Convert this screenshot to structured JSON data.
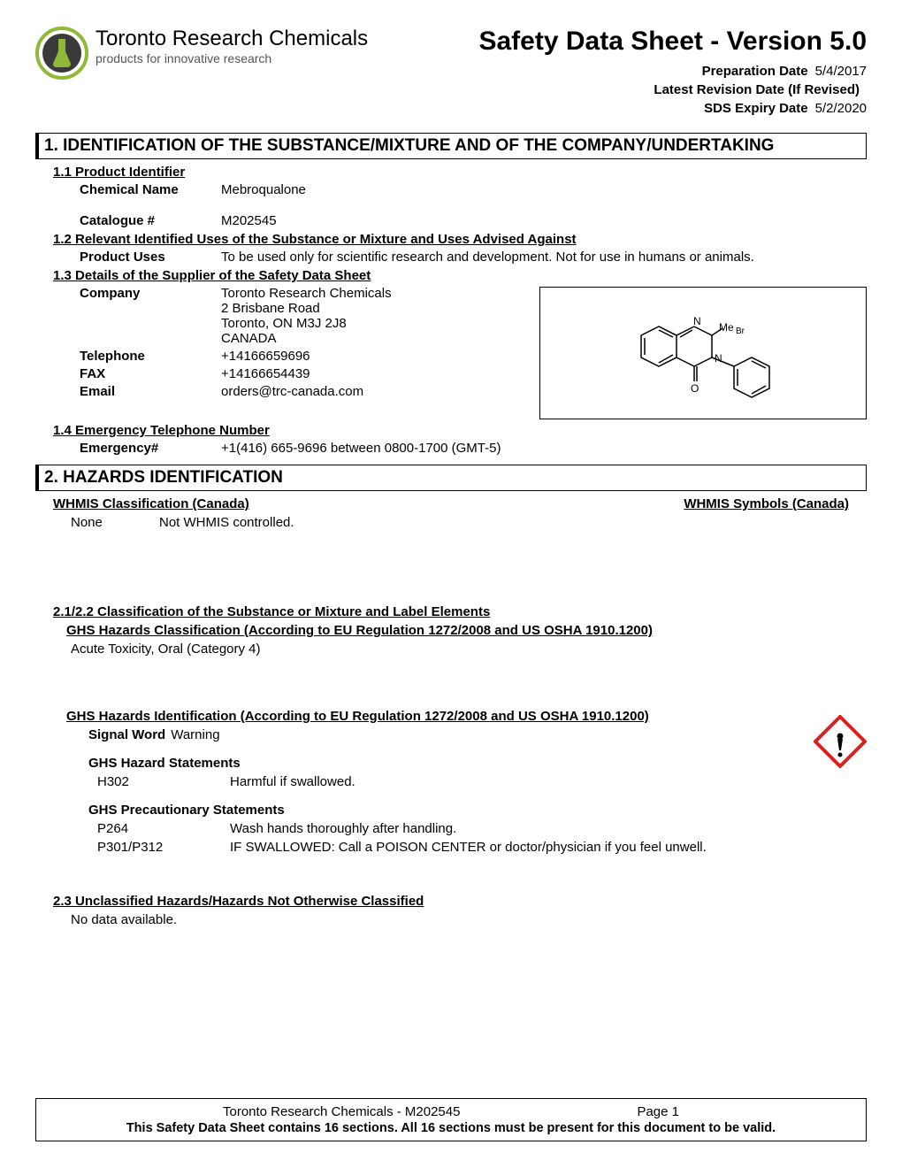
{
  "header": {
    "company_name": "Toronto Research Chemicals",
    "tagline": "products for innovative research",
    "title": "Safety Data Sheet - Version 5.0",
    "prep_label": "Preparation Date",
    "prep_value": "5/4/2017",
    "revision_label": "Latest Revision Date (If Revised)",
    "revision_value": "",
    "expiry_label": "SDS Expiry Date",
    "expiry_value": "5/2/2020",
    "logo_colors": {
      "outer": "#8fb936",
      "inner": "#3a3a3a",
      "flask": "#8fb936"
    }
  },
  "section1": {
    "title": "1. IDENTIFICATION OF THE SUBSTANCE/MIXTURE AND OF THE COMPANY/UNDERTAKING",
    "s11": "1.1 Product Identifier",
    "chem_label": "Chemical Name",
    "chem_value": "Mebroqualone",
    "cat_label": "Catalogue #",
    "cat_value": "M202545",
    "s12": "1.2 Relevant Identified Uses of the Substance or Mixture and Uses Advised Against",
    "uses_label": "Product Uses",
    "uses_value": "To be used only for scientific research and development. Not for use in humans or animals.",
    "s13": "1.3 Details of the Supplier of the Safety Data Sheet",
    "company_label": "Company",
    "company_value": "Toronto Research Chemicals\n2 Brisbane Road\nToronto, ON   M3J 2J8\nCANADA",
    "tel_label": "Telephone",
    "tel_value": "+14166659696",
    "fax_label": "FAX",
    "fax_value": "+14166654439",
    "email_label": "Email",
    "email_value": "orders@trc-canada.com",
    "s14": "1.4 Emergency Telephone Number",
    "emerg_label": "Emergency#",
    "emerg_value": "+1(416) 665-9696 between 0800-1700 (GMT-5)",
    "structure_labels": {
      "n1": "N",
      "n2": "N",
      "o": "O",
      "me": "Me",
      "br": "Br"
    }
  },
  "section2": {
    "title": "2. HAZARDS IDENTIFICATION",
    "whmis_class": "WHMIS Classification (Canada)",
    "whmis_symbols": "WHMIS Symbols (Canada)",
    "whmis_none": "None",
    "whmis_text": "Not WHMIS controlled.",
    "s21": "2.1/2.2 Classification of the Substance or Mixture and Label Elements",
    "ghs_class_header": "GHS Hazards Classification (According to EU Regulation 1272/2008 and US OSHA 1910.1200)",
    "ghs_class_value": "Acute Toxicity, Oral (Category 4)",
    "ghs_id_header": "GHS Hazards Identification (According to EU Regulation 1272/2008 and US OSHA 1910.1200)",
    "signal_label": "Signal Word",
    "signal_value": "Warning",
    "hazard_header": "GHS Hazard Statements",
    "hazard_statements": [
      {
        "code": "H302",
        "text": "Harmful if swallowed."
      }
    ],
    "precaution_header": "GHS Precautionary Statements",
    "precaution_statements": [
      {
        "code": "P264",
        "text": "Wash hands thoroughly after handling."
      },
      {
        "code": "P301/P312",
        "text": "IF SWALLOWED: Call a POISON CENTER or doctor/physician if you feel unwell."
      }
    ],
    "s23": "2.3 Unclassified Hazards/Hazards Not Otherwise Classified",
    "s23_value": "No data available.",
    "pictogram_colors": {
      "border": "#d9221f",
      "symbol": "#000000",
      "bg": "#ffffff"
    }
  },
  "footer": {
    "left": "Toronto Research Chemicals -  M202545",
    "page_label": "Page",
    "page_num": "1",
    "note": "This Safety Data Sheet contains 16 sections. All 16 sections must be present for this document to be valid."
  }
}
